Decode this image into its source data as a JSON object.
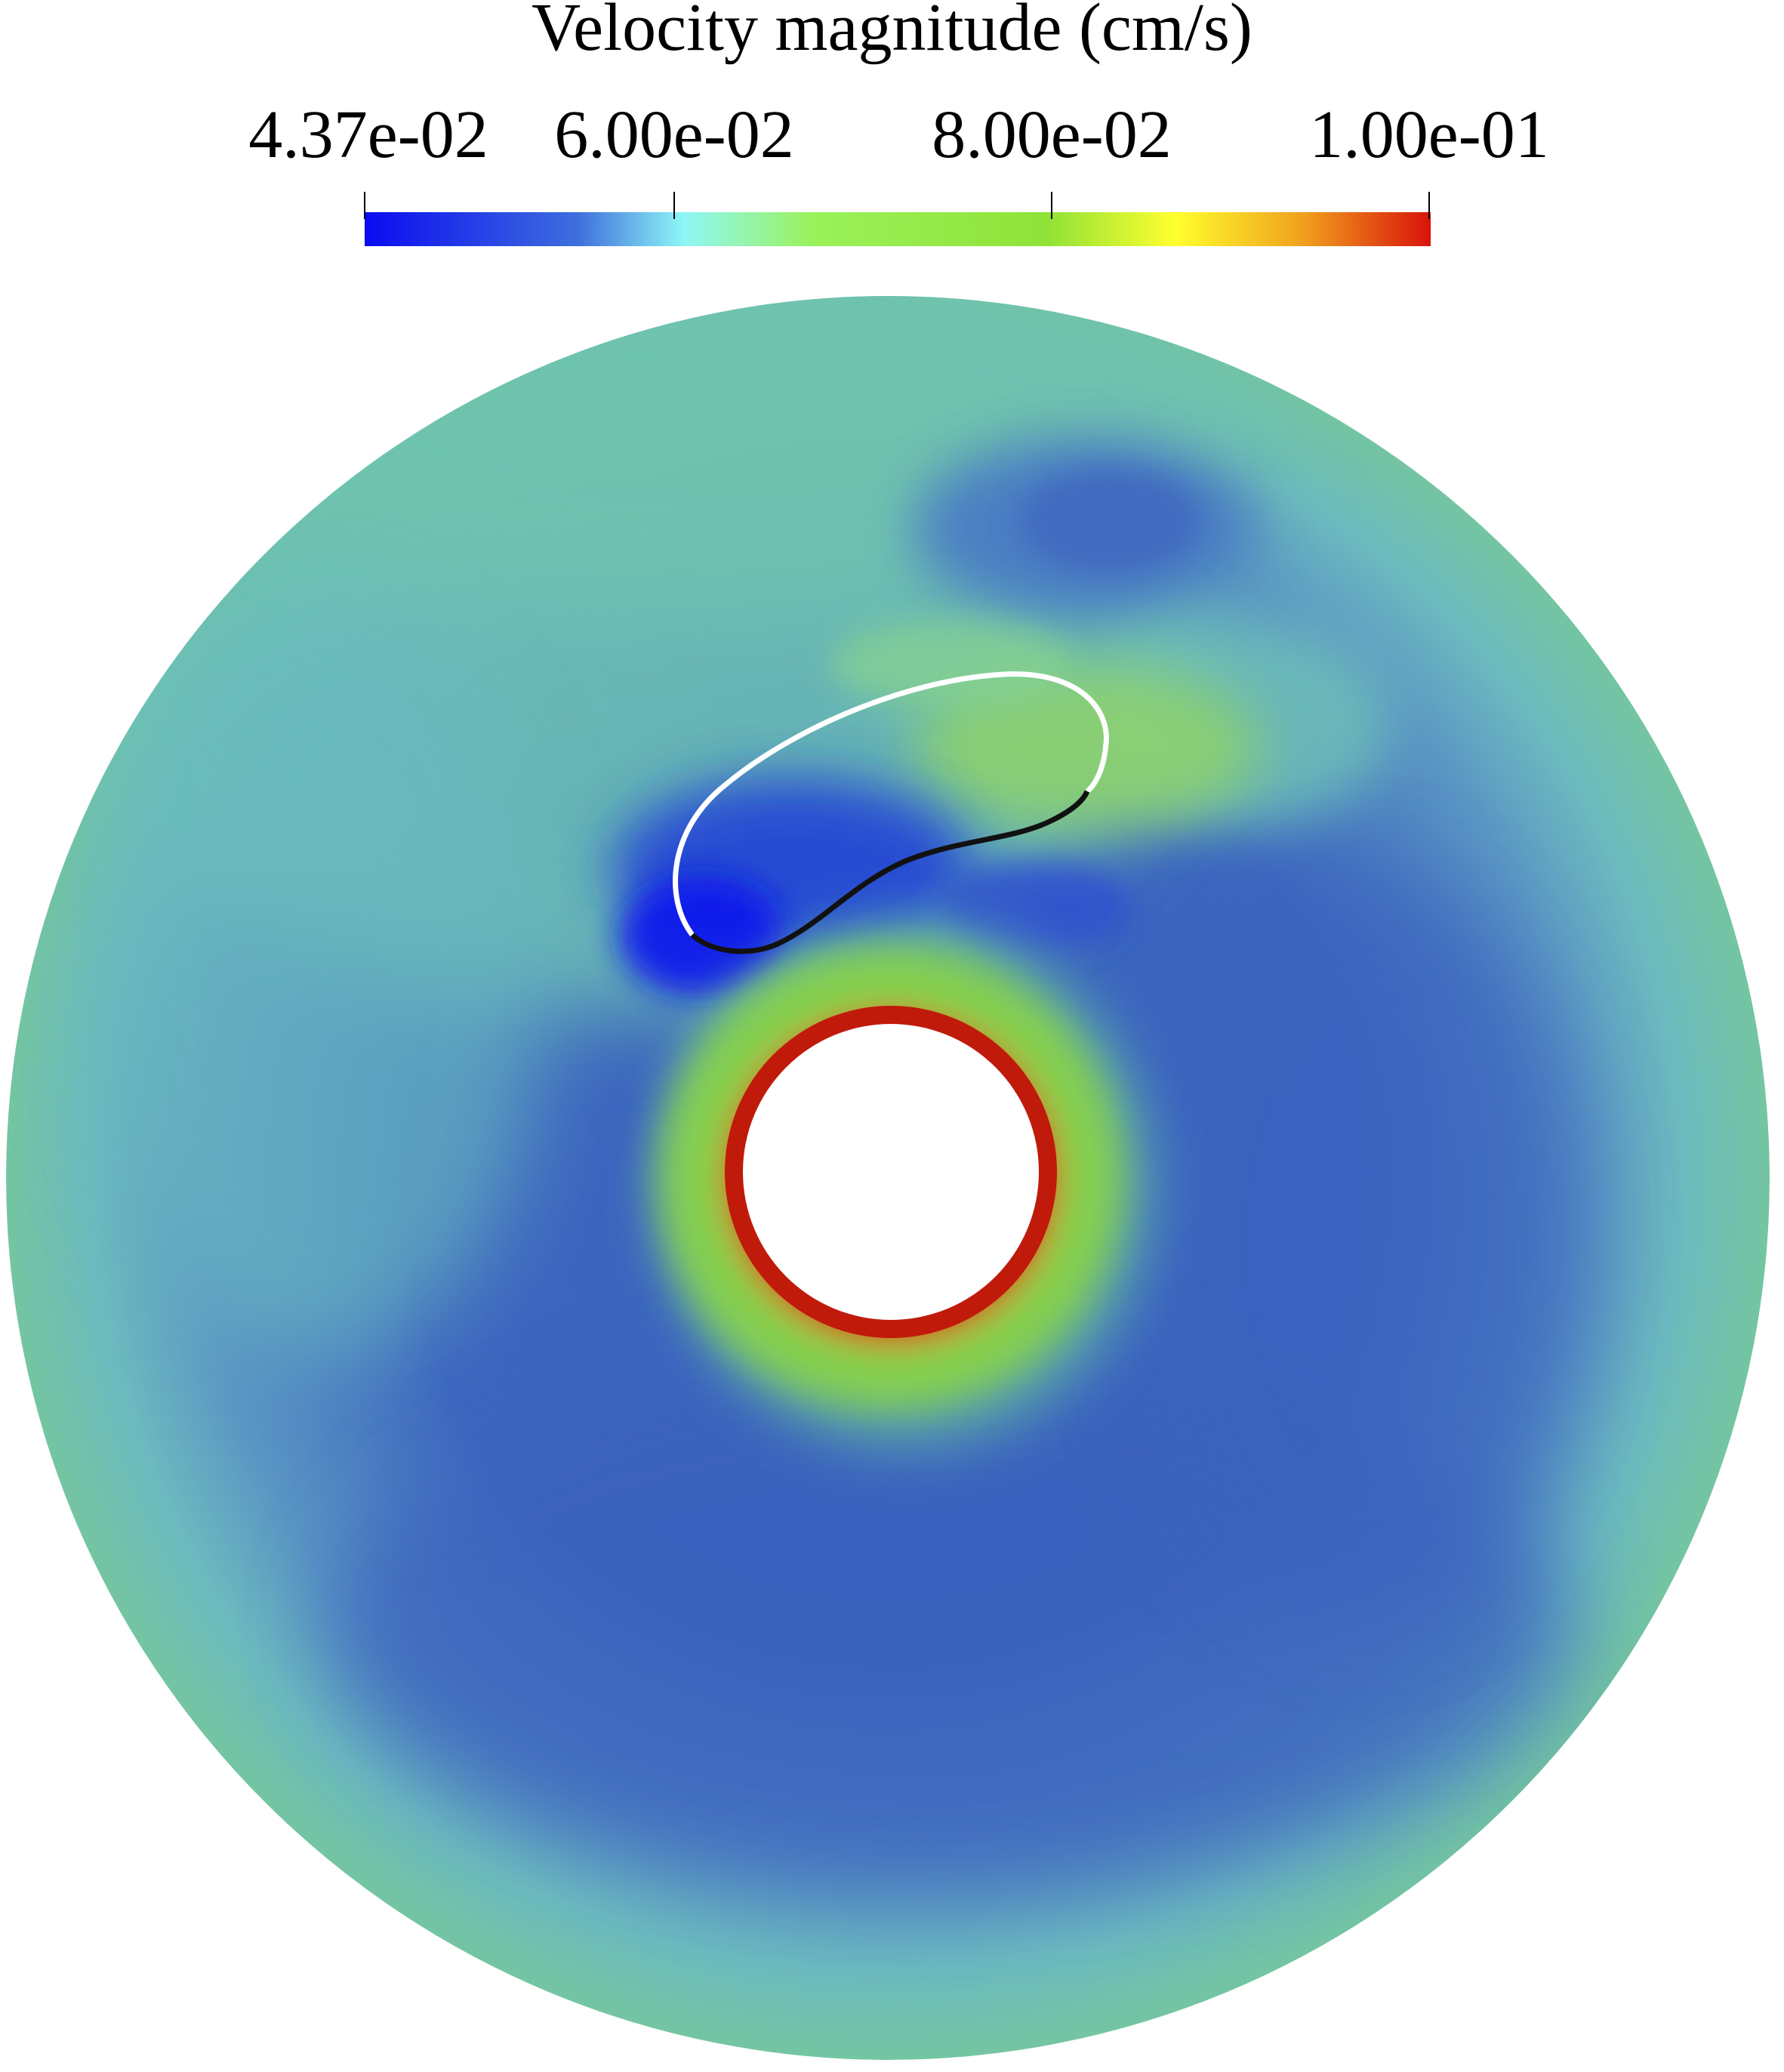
{
  "colorbar": {
    "title": "Velocity magnitude (cm/s)",
    "min": 0.0437,
    "max": 0.1,
    "ticks": [
      {
        "value": 0.0437,
        "label": "4.37e-02"
      },
      {
        "value": 0.06,
        "label": "6.00e-02"
      },
      {
        "value": 0.08,
        "label": "8.00e-02"
      },
      {
        "value": 0.1,
        "label": "1.00e-01"
      }
    ],
    "colormap": [
      "#0b0bf2",
      "#3e6fdc",
      "#8ff7f7",
      "#9af25a",
      "#8fe237",
      "#ffff2e",
      "#f0a01d",
      "#d8140a"
    ]
  },
  "colors": {
    "annulus_outer": "#74c5a2",
    "annulus_low": "#3a62be",
    "jet_green": "#86d24a",
    "hot_red": "#c8200e",
    "inner_hole": "#ffffff",
    "flap_upper": "#ffffff",
    "flap_lower": "#111111"
  }
}
